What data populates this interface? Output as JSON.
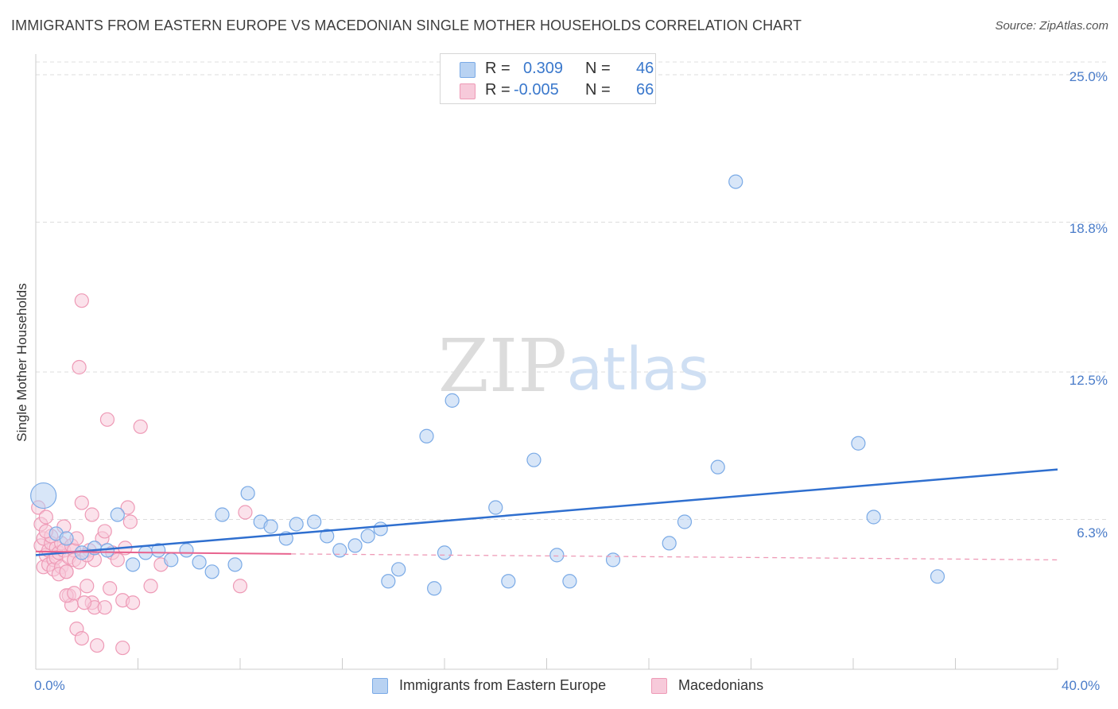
{
  "title": "IMMIGRANTS FROM EASTERN EUROPE VS MACEDONIAN SINGLE MOTHER HOUSEHOLDS CORRELATION CHART",
  "source": "Source: ZipAtlas.com",
  "watermark": {
    "zip": "ZIP",
    "atlas": "atlas"
  },
  "legend": {
    "r_label": "R =",
    "n_label": "N =",
    "series1": {
      "r": "0.309",
      "n": "46"
    },
    "series2": {
      "r": "-0.005",
      "n": "66"
    }
  },
  "chart_data": {
    "type": "scatter",
    "title": "IMMIGRANTS FROM EASTERN EUROPE VS MACEDONIAN SINGLE MOTHER HOUSEHOLDS CORRELATION CHART",
    "xlabel": "",
    "ylabel": "Single Mother Households",
    "xlim": [
      0,
      40
    ],
    "ylim": [
      0,
      25.8
    ],
    "x_tick_labels": [
      "0.0%",
      "40.0%"
    ],
    "y_ticks": [
      6.3,
      12.5,
      18.8,
      25.0
    ],
    "y_tick_labels": [
      "6.3%",
      "12.5%",
      "18.8%",
      "25.0%"
    ],
    "grid": true,
    "legend_position": "top-center",
    "series": [
      {
        "name": "Immigrants from Eastern Europe",
        "color": "#7aaae6",
        "fill": "#b8d2f2",
        "r": 0.309,
        "n": 46,
        "trend": {
          "x": [
            0,
            40
          ],
          "y": [
            4.8,
            8.4
          ],
          "style": "solid"
        },
        "points": [
          {
            "x": 0.3,
            "y": 7.3,
            "big": true
          },
          {
            "x": 0.8,
            "y": 5.7
          },
          {
            "x": 1.2,
            "y": 5.5
          },
          {
            "x": 1.8,
            "y": 4.9
          },
          {
            "x": 2.3,
            "y": 5.1
          },
          {
            "x": 2.8,
            "y": 5.0
          },
          {
            "x": 3.2,
            "y": 6.5
          },
          {
            "x": 3.8,
            "y": 4.4
          },
          {
            "x": 4.3,
            "y": 4.9
          },
          {
            "x": 4.8,
            "y": 5.0
          },
          {
            "x": 5.3,
            "y": 4.6
          },
          {
            "x": 5.9,
            "y": 5.0
          },
          {
            "x": 6.4,
            "y": 4.5
          },
          {
            "x": 6.9,
            "y": 4.1
          },
          {
            "x": 7.3,
            "y": 6.5
          },
          {
            "x": 7.8,
            "y": 4.4
          },
          {
            "x": 8.3,
            "y": 7.4
          },
          {
            "x": 8.8,
            "y": 6.2
          },
          {
            "x": 9.2,
            "y": 6.0
          },
          {
            "x": 9.8,
            "y": 5.5
          },
          {
            "x": 10.2,
            "y": 6.1
          },
          {
            "x": 10.9,
            "y": 6.2
          },
          {
            "x": 11.4,
            "y": 5.6
          },
          {
            "x": 11.9,
            "y": 5.0
          },
          {
            "x": 12.5,
            "y": 5.2
          },
          {
            "x": 13.0,
            "y": 5.6
          },
          {
            "x": 13.5,
            "y": 5.9
          },
          {
            "x": 13.8,
            "y": 3.7
          },
          {
            "x": 14.2,
            "y": 4.2
          },
          {
            "x": 15.3,
            "y": 9.8
          },
          {
            "x": 15.6,
            "y": 3.4
          },
          {
            "x": 16.0,
            "y": 4.9
          },
          {
            "x": 16.3,
            "y": 11.3
          },
          {
            "x": 18.0,
            "y": 6.8
          },
          {
            "x": 18.5,
            "y": 3.7
          },
          {
            "x": 19.5,
            "y": 8.8
          },
          {
            "x": 20.4,
            "y": 4.8
          },
          {
            "x": 20.9,
            "y": 3.7
          },
          {
            "x": 22.6,
            "y": 4.6
          },
          {
            "x": 24.8,
            "y": 5.3
          },
          {
            "x": 25.4,
            "y": 6.2
          },
          {
            "x": 26.7,
            "y": 8.5
          },
          {
            "x": 27.4,
            "y": 20.5
          },
          {
            "x": 32.2,
            "y": 9.5
          },
          {
            "x": 32.8,
            "y": 6.4
          },
          {
            "x": 35.3,
            "y": 3.9
          }
        ]
      },
      {
        "name": "Macedonians",
        "color": "#ee9ab6",
        "fill": "#f7cada",
        "r": -0.005,
        "n": 66,
        "trend": {
          "x": [
            0,
            10
          ],
          "y": [
            4.95,
            4.85
          ],
          "style": "solid",
          "extension": {
            "x": [
              10,
              40
            ],
            "y": [
              4.85,
              4.6
            ],
            "style": "dashed"
          }
        },
        "points": [
          {
            "x": 0.1,
            "y": 6.8
          },
          {
            "x": 0.2,
            "y": 6.1
          },
          {
            "x": 0.2,
            "y": 5.2
          },
          {
            "x": 0.3,
            "y": 4.3
          },
          {
            "x": 0.3,
            "y": 5.5
          },
          {
            "x": 0.4,
            "y": 4.8
          },
          {
            "x": 0.4,
            "y": 6.4
          },
          {
            "x": 0.5,
            "y": 5.0
          },
          {
            "x": 0.5,
            "y": 4.4
          },
          {
            "x": 0.6,
            "y": 5.3
          },
          {
            "x": 0.7,
            "y": 4.6
          },
          {
            "x": 0.7,
            "y": 4.2
          },
          {
            "x": 0.8,
            "y": 5.1
          },
          {
            "x": 0.8,
            "y": 4.7
          },
          {
            "x": 0.9,
            "y": 4.9
          },
          {
            "x": 1.0,
            "y": 5.3
          },
          {
            "x": 1.0,
            "y": 4.3
          },
          {
            "x": 1.1,
            "y": 6.0
          },
          {
            "x": 1.1,
            "y": 5.0
          },
          {
            "x": 1.2,
            "y": 4.1
          },
          {
            "x": 1.3,
            "y": 4.7
          },
          {
            "x": 1.3,
            "y": 3.1
          },
          {
            "x": 1.4,
            "y": 5.2
          },
          {
            "x": 1.4,
            "y": 2.7
          },
          {
            "x": 1.5,
            "y": 5.0
          },
          {
            "x": 1.5,
            "y": 4.6
          },
          {
            "x": 1.6,
            "y": 5.5
          },
          {
            "x": 1.6,
            "y": 1.7
          },
          {
            "x": 1.7,
            "y": 12.7
          },
          {
            "x": 1.7,
            "y": 4.5
          },
          {
            "x": 1.8,
            "y": 15.5
          },
          {
            "x": 1.8,
            "y": 7.0
          },
          {
            "x": 1.8,
            "y": 1.3
          },
          {
            "x": 2.0,
            "y": 3.5
          },
          {
            "x": 2.1,
            "y": 5.0
          },
          {
            "x": 2.2,
            "y": 2.8
          },
          {
            "x": 2.2,
            "y": 6.5
          },
          {
            "x": 2.3,
            "y": 4.6
          },
          {
            "x": 2.3,
            "y": 2.6
          },
          {
            "x": 2.4,
            "y": 1.0
          },
          {
            "x": 2.6,
            "y": 5.5
          },
          {
            "x": 2.7,
            "y": 5.8
          },
          {
            "x": 2.7,
            "y": 2.6
          },
          {
            "x": 2.8,
            "y": 10.5
          },
          {
            "x": 2.9,
            "y": 3.4
          },
          {
            "x": 3.0,
            "y": 4.9
          },
          {
            "x": 3.2,
            "y": 4.6
          },
          {
            "x": 3.4,
            "y": 2.9
          },
          {
            "x": 3.5,
            "y": 5.1
          },
          {
            "x": 3.6,
            "y": 6.8
          },
          {
            "x": 3.7,
            "y": 6.2
          },
          {
            "x": 3.8,
            "y": 2.8
          },
          {
            "x": 4.1,
            "y": 10.2
          },
          {
            "x": 4.5,
            "y": 3.5
          },
          {
            "x": 4.9,
            "y": 4.4
          },
          {
            "x": 8.2,
            "y": 6.6
          },
          {
            "x": 8.0,
            "y": 3.5
          },
          {
            "x": 3.4,
            "y": 0.9
          },
          {
            "x": 1.2,
            "y": 3.1
          },
          {
            "x": 1.9,
            "y": 2.8
          },
          {
            "x": 0.6,
            "y": 5.6
          },
          {
            "x": 0.9,
            "y": 4.0
          },
          {
            "x": 2.0,
            "y": 4.8
          },
          {
            "x": 1.5,
            "y": 3.2
          },
          {
            "x": 0.4,
            "y": 5.8
          },
          {
            "x": 1.2,
            "y": 4.1
          }
        ]
      }
    ]
  }
}
